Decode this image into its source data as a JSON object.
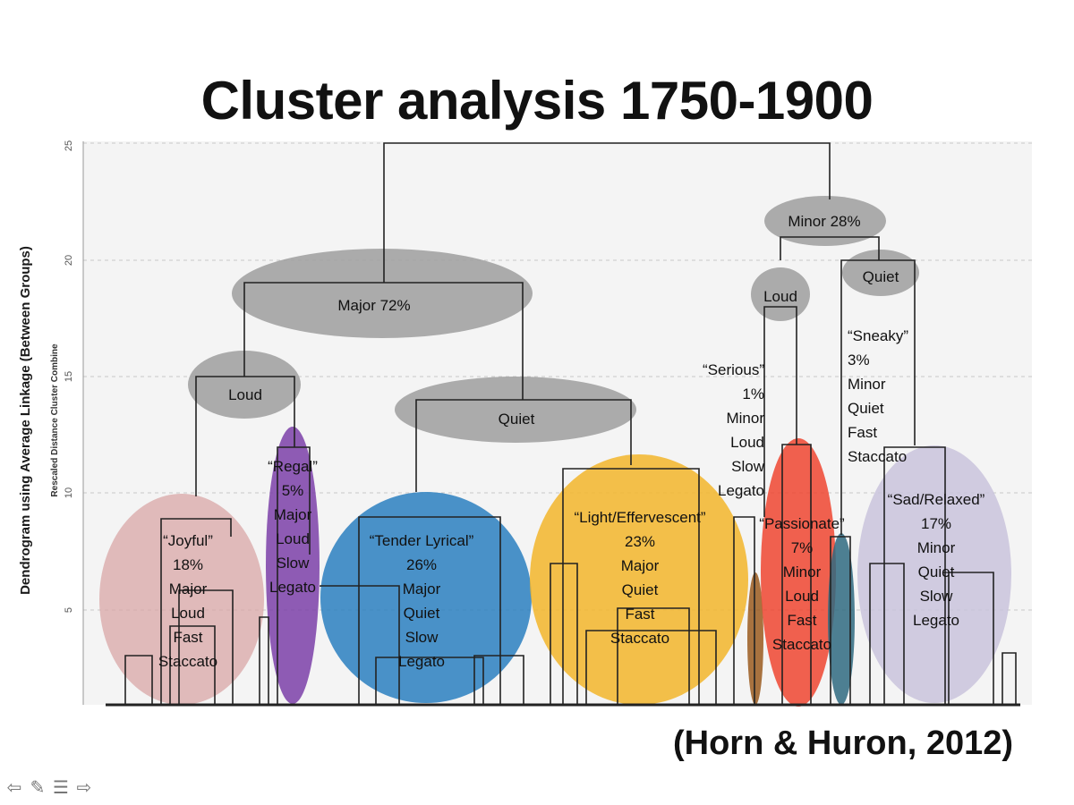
{
  "title": "Cluster analysis 1750-1900",
  "citation": "(Horn & Huron, 2012)",
  "y_axis": {
    "label": "Dendrogram using Average Linkage (Between Groups)",
    "sublabel": "Rescaled Distance Cluster Combine",
    "ticks": [
      "5",
      "10",
      "15",
      "20",
      "25"
    ]
  },
  "group_labels": {
    "major": "Major 72%",
    "minor": "Minor  28%",
    "major_loud": "Loud",
    "major_quiet": "Quiet",
    "minor_loud": "Loud",
    "minor_quiet": "Quiet"
  },
  "clusters": [
    {
      "lines": [
        "“Joyful”",
        "18%",
        "Major",
        "Loud",
        "Fast",
        "Staccato"
      ],
      "color": "#d9a7a7"
    },
    {
      "lines": [
        "“Regal”",
        "5%",
        "Major",
        "Loud",
        "Slow",
        "Legato"
      ],
      "color": "#7b3fa8"
    },
    {
      "lines": [
        "“Tender Lyrical”",
        "26%",
        "Major",
        "Quiet",
        "Slow",
        "Legato"
      ],
      "color": "#2a7fc0"
    },
    {
      "lines": [
        "“Light/Effervescent”",
        "23%",
        "Major",
        "Quiet",
        "Fast",
        "Staccato"
      ],
      "color": "#f2b52a"
    },
    {
      "lines": [
        "“Serious”",
        "1%",
        "Minor",
        "Loud",
        "Slow",
        "Legato"
      ],
      "color": "#9a5a1e"
    },
    {
      "lines": [
        "“Passionate”",
        "7%",
        "Minor",
        "Loud",
        "Fast",
        "Staccato"
      ],
      "color": "#ee4530"
    },
    {
      "lines": [
        "“Sneaky”",
        "3%",
        "Minor",
        "Quiet",
        "Fast",
        "Staccato"
      ],
      "color": "#2f6a80"
    },
    {
      "lines": [
        "“Sad/Relaxed”",
        "17%",
        "Minor",
        "Quiet",
        "Slow",
        "Legato"
      ],
      "color": "#c9c3dc"
    }
  ],
  "colors": {
    "group_ellipse": "#9e9e9e",
    "line": "#222222"
  },
  "nav_icons": [
    "arrow-left-icon",
    "pencil-icon",
    "menu-icon",
    "arrow-right-icon"
  ]
}
